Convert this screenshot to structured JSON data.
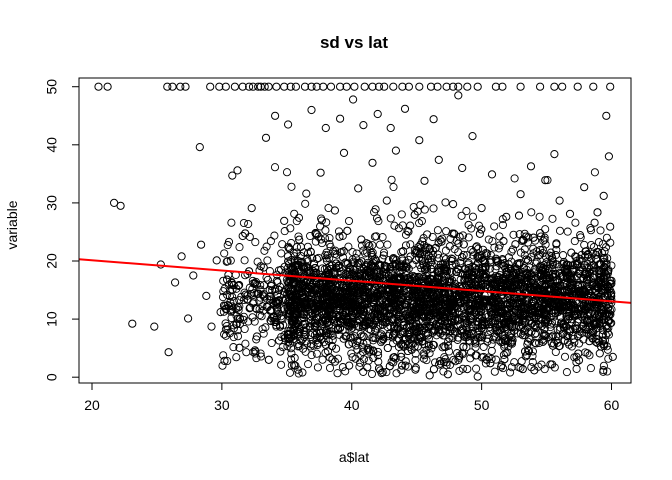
{
  "chart_data": {
    "type": "scatter",
    "title": "sd  vs lat",
    "xlabel": "a$lat",
    "ylabel": "variable",
    "xlim": [
      19,
      61.5
    ],
    "ylim": [
      -1,
      51.5
    ],
    "x_ticks": [
      20,
      30,
      40,
      50,
      60
    ],
    "y_ticks": [
      0,
      10,
      20,
      30,
      40,
      50
    ],
    "grid": false,
    "legend": "none",
    "marker": "open-circle",
    "point_color": "#000000",
    "fit_line": {
      "color": "#ff0000",
      "x": [
        19,
        61.5
      ],
      "y": [
        20.3,
        12.8
      ]
    },
    "series": [
      {
        "points": [
          [
            20.5,
            50
          ],
          [
            21.2,
            50
          ],
          [
            25.8,
            50
          ],
          [
            26.2,
            50
          ],
          [
            26.8,
            50
          ],
          [
            27.2,
            50
          ],
          [
            29.1,
            50
          ],
          [
            29.8,
            50
          ],
          [
            30.3,
            50
          ],
          [
            31.0,
            50
          ],
          [
            31.6,
            50
          ],
          [
            32.1,
            50
          ],
          [
            32.4,
            50
          ],
          [
            32.8,
            50
          ],
          [
            33.0,
            50
          ],
          [
            33.3,
            50
          ],
          [
            33.6,
            50
          ],
          [
            34.2,
            50
          ],
          [
            34.8,
            50
          ],
          [
            35.3,
            50
          ],
          [
            35.7,
            50
          ],
          [
            36.4,
            50
          ],
          [
            36.9,
            50
          ],
          [
            37.3,
            50
          ],
          [
            37.8,
            50
          ],
          [
            38.4,
            50
          ],
          [
            39.1,
            50
          ],
          [
            39.6,
            50
          ],
          [
            40.2,
            50
          ],
          [
            41.0,
            50
          ],
          [
            41.6,
            50
          ],
          [
            42.1,
            50
          ],
          [
            42.5,
            50
          ],
          [
            43.2,
            50
          ],
          [
            43.9,
            50
          ],
          [
            44.4,
            50
          ],
          [
            45.2,
            50
          ],
          [
            46.1,
            50
          ],
          [
            46.6,
            50
          ],
          [
            47.3,
            50
          ],
          [
            47.8,
            50
          ],
          [
            48.2,
            50
          ],
          [
            48.9,
            50
          ],
          [
            49.7,
            50
          ],
          [
            51.1,
            50
          ],
          [
            51.6,
            50
          ],
          [
            53.0,
            50
          ],
          [
            54.5,
            50
          ],
          [
            55.6,
            50
          ],
          [
            56.2,
            50
          ],
          [
            57.4,
            50
          ],
          [
            58.6,
            50
          ],
          [
            59.9,
            50
          ],
          [
            21.7,
            30.0
          ],
          [
            22.2,
            29.5
          ],
          [
            23.1,
            9.2
          ],
          [
            24.8,
            8.7
          ],
          [
            25.3,
            19.4
          ],
          [
            25.9,
            4.3
          ],
          [
            26.4,
            16.3
          ],
          [
            26.9,
            20.8
          ],
          [
            27.4,
            10.1
          ],
          [
            27.8,
            17.5
          ],
          [
            28.3,
            39.6
          ],
          [
            28.4,
            22.8
          ],
          [
            28.8,
            14.0
          ],
          [
            29.2,
            8.7
          ],
          [
            29.6,
            20.1
          ],
          [
            29.9,
            11.2
          ],
          [
            30.2,
            2.8
          ],
          [
            30.5,
            17.6
          ],
          [
            30.8,
            34.7
          ],
          [
            31.2,
            35.6
          ],
          [
            31.6,
            24.3
          ],
          [
            32.0,
            13.4
          ],
          [
            32.3,
            29.1
          ],
          [
            32.7,
            7.0
          ],
          [
            33.0,
            19.1
          ],
          [
            33.4,
            41.2
          ],
          [
            33.8,
            15.7
          ],
          [
            34.1,
            45.0
          ],
          [
            34.5,
            4.4
          ],
          [
            34.8,
            26.9
          ],
          [
            35.1,
            43.5
          ],
          [
            35.4,
            9.6
          ],
          [
            35.8,
            12.3
          ],
          [
            36.2,
            0.8
          ],
          [
            36.5,
            31.6
          ],
          [
            36.9,
            46.0
          ],
          [
            37.3,
            6.8
          ],
          [
            37.6,
            35.2
          ],
          [
            38.0,
            42.9
          ],
          [
            38.3,
            3.4
          ],
          [
            38.7,
            28.7
          ],
          [
            39.1,
            44.5
          ],
          [
            39.4,
            38.6
          ],
          [
            39.8,
            2.0
          ],
          [
            40.1,
            47.8
          ],
          [
            40.5,
            32.5
          ],
          [
            40.9,
            43.4
          ],
          [
            41.2,
            1.7
          ],
          [
            41.6,
            36.9
          ],
          [
            42.0,
            45.3
          ],
          [
            42.3,
            0.7
          ],
          [
            42.7,
            30.4
          ],
          [
            43.0,
            42.9
          ],
          [
            43.4,
            39.0
          ],
          [
            43.8,
            3.5
          ],
          [
            44.1,
            46.2
          ],
          [
            44.5,
            26.1
          ],
          [
            44.9,
            1.3
          ],
          [
            45.2,
            40.8
          ],
          [
            45.6,
            33.8
          ],
          [
            46.0,
            0.3
          ],
          [
            46.3,
            44.4
          ],
          [
            46.7,
            37.4
          ],
          [
            47.1,
            2.6
          ],
          [
            47.4,
            0.5
          ],
          [
            47.8,
            29.8
          ],
          [
            48.2,
            48.5
          ],
          [
            48.5,
            36.0
          ],
          [
            48.9,
            1.4
          ],
          [
            49.3,
            41.5
          ],
          [
            49.7,
            0.1
          ],
          [
            50.0,
            29.1
          ],
          [
            50.4,
            3.0
          ],
          [
            50.8,
            34.9
          ],
          [
            51.1,
            20.4
          ],
          [
            51.5,
            1.8
          ],
          [
            51.9,
            27.6
          ],
          [
            52.3,
            6.8
          ],
          [
            52.6,
            22.9
          ],
          [
            53.0,
            31.5
          ],
          [
            53.4,
            3.6
          ],
          [
            53.8,
            36.3
          ],
          [
            54.1,
            5.9
          ],
          [
            54.5,
            24.8
          ],
          [
            54.9,
            33.9
          ],
          [
            55.3,
            2.2
          ],
          [
            55.6,
            38.4
          ],
          [
            56.0,
            30.4
          ],
          [
            56.4,
            6.3
          ],
          [
            56.8,
            28.1
          ],
          [
            57.2,
            20.8
          ],
          [
            57.5,
            2.9
          ],
          [
            57.9,
            32.7
          ],
          [
            58.3,
            6.2
          ],
          [
            58.7,
            26.6
          ],
          [
            59.1,
            4.1
          ],
          [
            59.4,
            31.2
          ],
          [
            59.6,
            45.0
          ],
          [
            59.8,
            38.0
          ],
          [
            60.0,
            16.6
          ],
          [
            60.1,
            3.5
          ],
          [
            59.9,
            25.9
          ]
        ]
      }
    ]
  }
}
